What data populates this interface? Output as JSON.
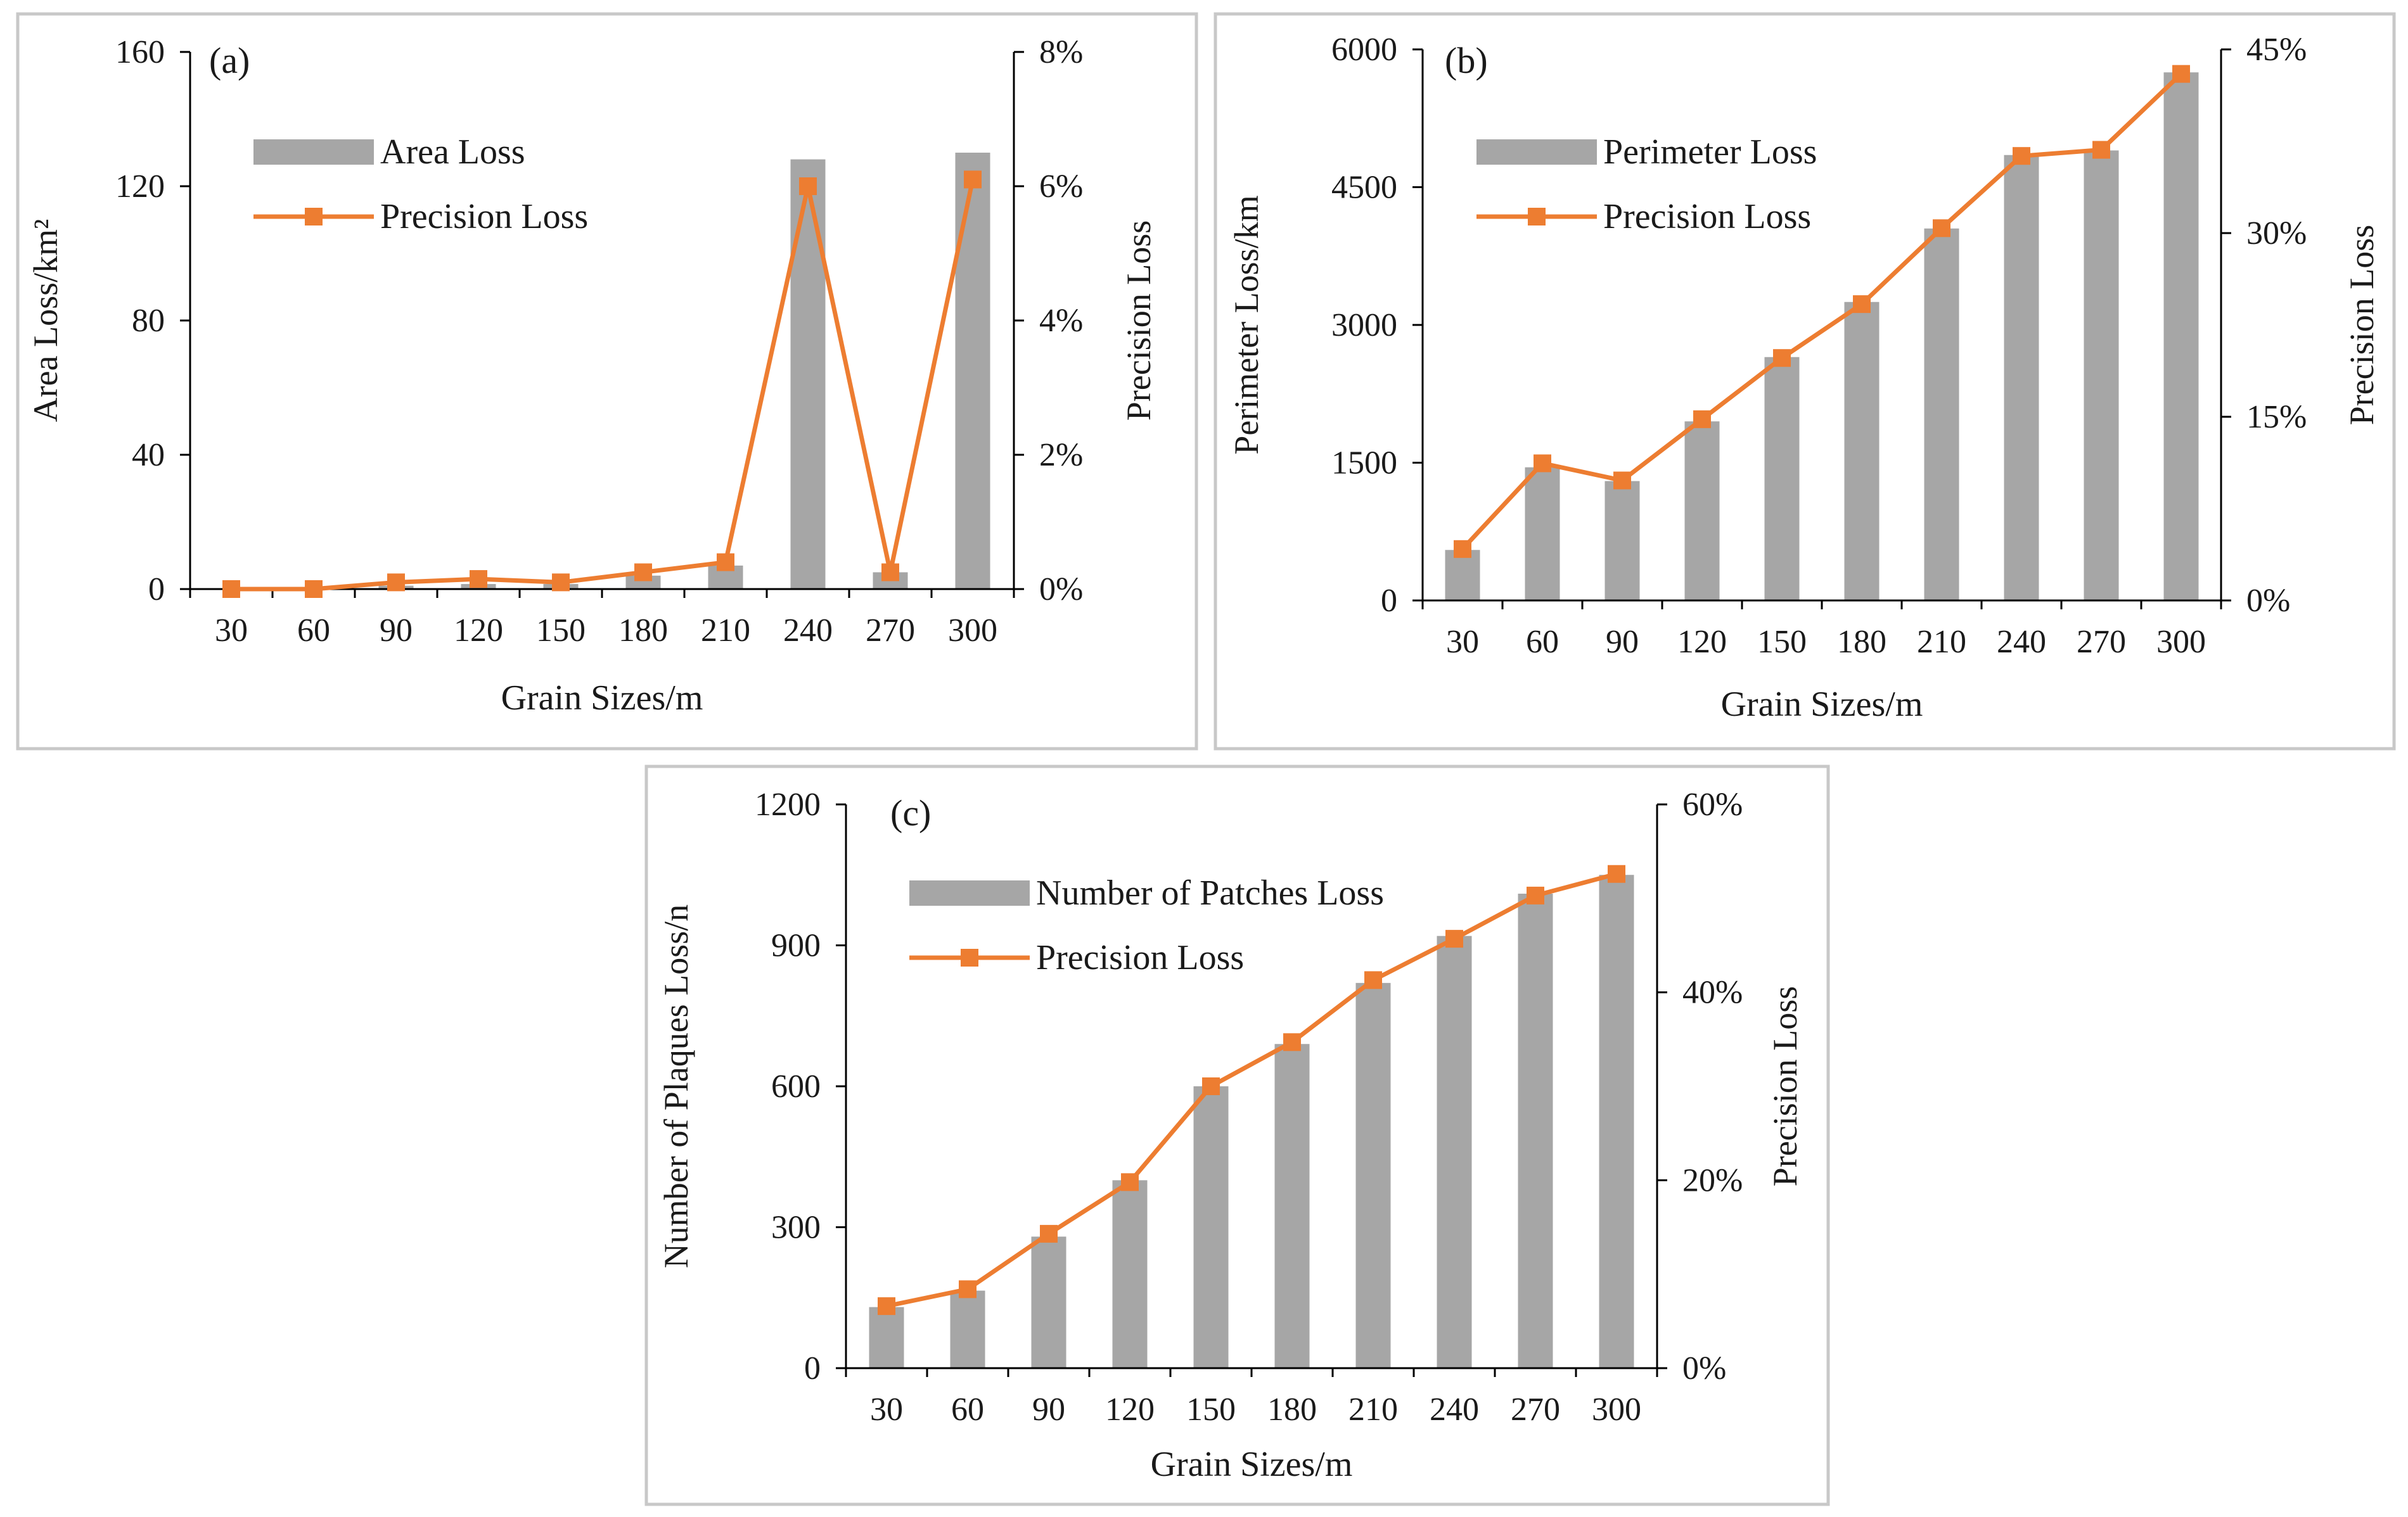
{
  "colors": {
    "bar": "#a6a6a6",
    "line": "#ed7d31",
    "axis": "#000000",
    "frame": "#c8c8c8"
  },
  "chart_data": [
    {
      "id": "a",
      "type": "bar+line",
      "panel_label": "(a)",
      "xlabel": "Grain Sizes/m",
      "ylabel": "Area Loss/km²",
      "y2label": "Precision Loss",
      "categories": [
        "30",
        "60",
        "90",
        "120",
        "150",
        "180",
        "210",
        "240",
        "270",
        "300"
      ],
      "series": [
        {
          "name": "Area Loss",
          "kind": "bar",
          "axis": "left",
          "values": [
            0.2,
            0.3,
            1,
            1.5,
            1.5,
            4,
            7,
            128,
            5,
            130
          ]
        },
        {
          "name": "Precision Loss",
          "kind": "line",
          "axis": "right",
          "values": [
            0.0,
            0.0,
            0.1,
            0.15,
            0.1,
            0.25,
            0.4,
            6.0,
            0.25,
            6.1
          ]
        }
      ],
      "ylim": [
        0,
        160
      ],
      "yticks": [
        0,
        40,
        80,
        120,
        160
      ],
      "yticklabels": [
        "0",
        "40",
        "80",
        "120",
        "160"
      ],
      "y2lim": [
        0,
        8
      ],
      "y2ticks": [
        0,
        2,
        4,
        6,
        8
      ],
      "y2ticklabels": [
        "0%",
        "2%",
        "4%",
        "6%",
        "8%"
      ],
      "legend": [
        "Area Loss",
        "Precision Loss"
      ]
    },
    {
      "id": "b",
      "type": "bar+line",
      "panel_label": "(b)",
      "xlabel": "Grain Sizes/m",
      "ylabel": "Perimeter Loss/km",
      "y2label": "Precision Loss",
      "categories": [
        "30",
        "60",
        "90",
        "120",
        "150",
        "180",
        "210",
        "240",
        "270",
        "300"
      ],
      "series": [
        {
          "name": "Perimeter Loss",
          "kind": "bar",
          "axis": "left",
          "values": [
            550,
            1450,
            1300,
            1950,
            2650,
            3250,
            4050,
            4850,
            4900,
            5750
          ]
        },
        {
          "name": "Precision Loss",
          "kind": "line",
          "axis": "right",
          "values": [
            4.2,
            11.2,
            9.8,
            14.8,
            19.8,
            24.2,
            30.4,
            36.3,
            36.8,
            43.0
          ]
        }
      ],
      "ylim": [
        0,
        6000
      ],
      "yticks": [
        0,
        1500,
        3000,
        4500,
        6000
      ],
      "yticklabels": [
        "0",
        "1500",
        "3000",
        "4500",
        "6000"
      ],
      "y2lim": [
        0,
        45
      ],
      "y2ticks": [
        0,
        15,
        30,
        45
      ],
      "y2ticklabels": [
        "0%",
        "15%",
        "30%",
        "45%"
      ],
      "legend": [
        "Perimeter Loss",
        "Precision Loss"
      ]
    },
    {
      "id": "c",
      "type": "bar+line",
      "panel_label": "(c)",
      "xlabel": "Grain Sizes/m",
      "ylabel": "Number of Plaques Loss/n",
      "y2label": "Precision Loss",
      "categories": [
        "30",
        "60",
        "90",
        "120",
        "150",
        "180",
        "210",
        "240",
        "270",
        "300"
      ],
      "series": [
        {
          "name": "Number of Patches Loss",
          "kind": "bar",
          "axis": "left",
          "values": [
            130,
            165,
            280,
            400,
            600,
            690,
            820,
            920,
            1010,
            1050
          ]
        },
        {
          "name": "Precision Loss",
          "kind": "line",
          "axis": "right",
          "values": [
            6.6,
            8.4,
            14.3,
            19.8,
            30.0,
            34.7,
            41.3,
            45.7,
            50.3,
            52.6
          ]
        }
      ],
      "ylim": [
        0,
        1200
      ],
      "yticks": [
        0,
        300,
        600,
        900,
        1200
      ],
      "yticklabels": [
        "0",
        "300",
        "600",
        "900",
        "1200"
      ],
      "y2lim": [
        0,
        60
      ],
      "y2ticks": [
        0,
        20,
        40,
        60
      ],
      "y2ticklabels": [
        "0%",
        "20%",
        "40%",
        "60%"
      ],
      "legend": [
        "Number of Patches Loss",
        "Precision Loss"
      ]
    }
  ]
}
